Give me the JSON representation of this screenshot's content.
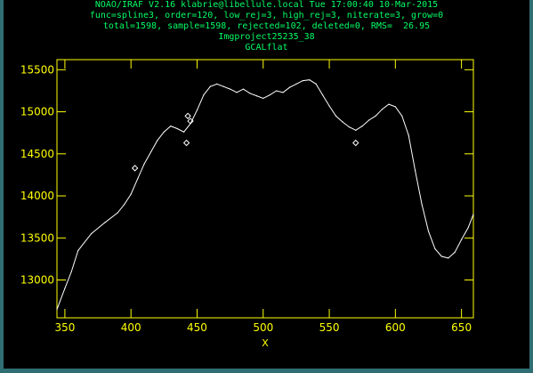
{
  "header": {
    "line1": "NOAO/IRAF V2.16 klabrie@libellule.local Tue 17:00:40 10-Mar-2015",
    "line2": "func=spline3, order=120, low_rej=3, high_rej=3, niterate=3, grow=0",
    "line3": "total=1598, sample=1598, rejected=102, deleted=0, RMS=  26.95",
    "line4": "Imgproject25235_38",
    "line5": "GCALflat"
  },
  "colors": {
    "background": "#000000",
    "frame": "#2f6f73",
    "header_text": "#00ff66",
    "axes": "#ffff00",
    "data": "#ffffff"
  },
  "chart_data": {
    "type": "line",
    "xlabel": "X",
    "ylabel": "",
    "xlim": [
      344,
      659
    ],
    "ylim": [
      12550,
      15620
    ],
    "xticks": [
      350,
      400,
      450,
      500,
      550,
      600,
      650
    ],
    "yticks": [
      13000,
      13500,
      14000,
      14500,
      15000,
      15500
    ],
    "grid": false,
    "series": [
      {
        "x": [
          344,
          350,
          355,
          360,
          370,
          380,
          390,
          395,
          400,
          405,
          410,
          415,
          420,
          425,
          430,
          435,
          440,
          445,
          450,
          455,
          460,
          465,
          470,
          475,
          480,
          485,
          490,
          495,
          500,
          505,
          510,
          515,
          520,
          525,
          530,
          535,
          540,
          545,
          550,
          555,
          560,
          565,
          570,
          575,
          580,
          585,
          590,
          595,
          600,
          605,
          610,
          615,
          620,
          625,
          630,
          635,
          640,
          645,
          650,
          655,
          659
        ],
        "y": [
          12650,
          12900,
          13100,
          13350,
          13550,
          13680,
          13800,
          13900,
          14020,
          14200,
          14380,
          14520,
          14660,
          14760,
          14830,
          14800,
          14760,
          14860,
          15020,
          15200,
          15300,
          15330,
          15300,
          15270,
          15230,
          15270,
          15220,
          15190,
          15160,
          15200,
          15250,
          15230,
          15290,
          15330,
          15370,
          15380,
          15330,
          15200,
          15070,
          14950,
          14880,
          14820,
          14780,
          14830,
          14900,
          14950,
          15030,
          15090,
          15060,
          14950,
          14720,
          14300,
          13900,
          13580,
          13370,
          13280,
          13260,
          13330,
          13480,
          13620,
          13780
        ]
      }
    ],
    "rejected_points": {
      "x": [
        403,
        442,
        443,
        445,
        570
      ],
      "y": [
        14330,
        14630,
        14950,
        14890,
        14630
      ]
    }
  }
}
